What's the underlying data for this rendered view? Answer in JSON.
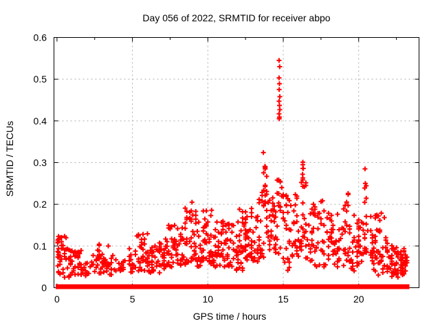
{
  "chart_data": {
    "type": "scatter",
    "title": "Day 056 of 2022, SRMTID for receiver abpo",
    "xlabel": "GPS time / hours",
    "ylabel": "SRMTID / TECUs",
    "xlim": [
      -0.2,
      24.0
    ],
    "ylim": [
      0,
      0.6
    ],
    "xticks": [
      0,
      5,
      10,
      15,
      20
    ],
    "xtick_labels": [
      "0",
      "5",
      "10",
      "15",
      "20"
    ],
    "xticks_minor": [
      2.5,
      7.5,
      12.5,
      17.5,
      22.5
    ],
    "yticks": [
      0,
      0.1,
      0.2,
      0.3,
      0.4,
      0.5,
      0.6
    ],
    "ytick_labels": [
      "0",
      "0.1",
      "0.2",
      "0.3",
      "0.4",
      "0.5",
      "0.6"
    ],
    "grid": true,
    "legend": "none",
    "marker": "plus",
    "marker_color": "#ff0000",
    "grid_color": "#ababab",
    "border_color": "#000000",
    "text_color": "#000000",
    "seed": 56,
    "series_clusters": [
      [
        0.25,
        0.45,
        0.03,
        0.125,
        30
      ],
      [
        0.8,
        0.5,
        0.025,
        0.095,
        26
      ],
      [
        1.45,
        0.45,
        0.03,
        0.09,
        20
      ],
      [
        2.1,
        0.35,
        0.025,
        0.07,
        10
      ],
      [
        2.8,
        0.6,
        0.035,
        0.105,
        30
      ],
      [
        3.6,
        0.5,
        0.03,
        0.085,
        18
      ],
      [
        4.3,
        0.45,
        0.03,
        0.075,
        12
      ],
      [
        5.0,
        0.4,
        0.035,
        0.095,
        16
      ],
      [
        5.65,
        0.5,
        0.04,
        0.13,
        28
      ],
      [
        6.3,
        0.5,
        0.03,
        0.1,
        26
      ],
      [
        7.0,
        0.5,
        0.04,
        0.115,
        26
      ],
      [
        7.65,
        0.5,
        0.05,
        0.15,
        28
      ],
      [
        8.25,
        0.5,
        0.05,
        0.145,
        26
      ],
      [
        8.9,
        0.45,
        0.06,
        0.205,
        30
      ],
      [
        9.5,
        0.5,
        0.05,
        0.165,
        28
      ],
      [
        10.1,
        0.5,
        0.06,
        0.185,
        30
      ],
      [
        10.7,
        0.5,
        0.05,
        0.16,
        28
      ],
      [
        11.3,
        0.5,
        0.05,
        0.155,
        28
      ],
      [
        11.9,
        0.5,
        0.04,
        0.17,
        28
      ],
      [
        12.45,
        0.5,
        0.06,
        0.19,
        30
      ],
      [
        13.0,
        0.45,
        0.06,
        0.185,
        28
      ],
      [
        13.45,
        0.3,
        0.07,
        0.24,
        18
      ],
      [
        13.75,
        0.2,
        0.19,
        0.295,
        18
      ],
      [
        14.15,
        0.35,
        0.09,
        0.235,
        24
      ],
      [
        14.55,
        0.3,
        0.08,
        0.21,
        16
      ],
      [
        14.75,
        0.25,
        0.17,
        0.26,
        12
      ],
      [
        15.3,
        0.5,
        0.04,
        0.23,
        30
      ],
      [
        15.9,
        0.4,
        0.07,
        0.225,
        24
      ],
      [
        16.3,
        0.2,
        0.1,
        0.3,
        16
      ],
      [
        16.8,
        0.5,
        0.06,
        0.215,
        26
      ],
      [
        17.4,
        0.5,
        0.05,
        0.21,
        26
      ],
      [
        18.0,
        0.5,
        0.05,
        0.185,
        24
      ],
      [
        18.6,
        0.5,
        0.05,
        0.18,
        24
      ],
      [
        19.2,
        0.3,
        0.06,
        0.23,
        20
      ],
      [
        19.7,
        0.4,
        0.04,
        0.175,
        22
      ],
      [
        20.1,
        0.3,
        0.05,
        0.16,
        18
      ],
      [
        20.45,
        0.18,
        0.07,
        0.285,
        16
      ],
      [
        20.9,
        0.4,
        0.04,
        0.175,
        22
      ],
      [
        21.4,
        0.4,
        0.03,
        0.18,
        24
      ],
      [
        21.9,
        0.4,
        0.03,
        0.12,
        22
      ],
      [
        22.4,
        0.4,
        0.025,
        0.1,
        26
      ],
      [
        22.85,
        0.35,
        0.03,
        0.1,
        26
      ],
      [
        23.15,
        0.15,
        0.035,
        0.09,
        10
      ]
    ],
    "spike_points": [
      [
        14.72,
        0.545
      ],
      [
        14.76,
        0.53
      ],
      [
        14.72,
        0.503
      ],
      [
        14.75,
        0.489
      ],
      [
        14.73,
        0.475
      ],
      [
        14.77,
        0.458
      ],
      [
        14.72,
        0.447
      ],
      [
        14.75,
        0.437
      ],
      [
        14.77,
        0.427
      ],
      [
        14.72,
        0.417
      ],
      [
        14.75,
        0.409
      ],
      [
        14.73,
        0.405
      ]
    ],
    "notable_points": [
      [
        13.68,
        0.324
      ],
      [
        13.78,
        0.291
      ],
      [
        14.6,
        0.258
      ],
      [
        16.3,
        0.301
      ],
      [
        16.33,
        0.286
      ],
      [
        16.28,
        0.272
      ],
      [
        20.42,
        0.285
      ],
      [
        20.44,
        0.25
      ],
      [
        19.3,
        0.226
      ],
      [
        8.95,
        0.205
      ],
      [
        12.9,
        0.19
      ],
      [
        10.25,
        0.186
      ],
      [
        0.15,
        0.118
      ]
    ],
    "zero_line_segments": [
      [
        0.05,
        0.3
      ],
      [
        0.45,
        0.6
      ],
      [
        0.75,
        1.05
      ],
      [
        1.2,
        1.3
      ],
      [
        1.55,
        1.8
      ],
      [
        1.9,
        2.15
      ],
      [
        2.3,
        2.8
      ],
      [
        2.95,
        3.15
      ],
      [
        3.3,
        3.75
      ],
      [
        3.9,
        4.05
      ],
      [
        4.2,
        4.7
      ],
      [
        4.85,
        5.1
      ],
      [
        5.25,
        5.75
      ],
      [
        5.9,
        6.35
      ],
      [
        6.5,
        6.8
      ],
      [
        6.95,
        7.4
      ],
      [
        7.55,
        7.85
      ],
      [
        8.0,
        8.35
      ],
      [
        8.5,
        8.9
      ],
      [
        9.05,
        9.55
      ],
      [
        9.7,
        9.85
      ],
      [
        10.0,
        10.45
      ],
      [
        10.6,
        10.8
      ],
      [
        11.0,
        11.5
      ],
      [
        11.65,
        12.15
      ],
      [
        12.3,
        12.5
      ],
      [
        12.65,
        13.15
      ],
      [
        13.3,
        13.5
      ],
      [
        13.65,
        14.1
      ],
      [
        14.25,
        14.5
      ],
      [
        14.7,
        14.85
      ],
      [
        15.05,
        15.35
      ],
      [
        15.55,
        15.65
      ],
      [
        15.85,
        16.25
      ],
      [
        16.45,
        16.6
      ],
      [
        16.8,
        17.25
      ],
      [
        17.4,
        17.8
      ],
      [
        17.95,
        18.1
      ],
      [
        18.25,
        18.7
      ],
      [
        18.85,
        19.3
      ],
      [
        19.5,
        19.6
      ],
      [
        19.75,
        20.2
      ],
      [
        20.35,
        20.55
      ],
      [
        20.75,
        21.2
      ],
      [
        21.35,
        21.75
      ],
      [
        21.9,
        22.35
      ],
      [
        22.5,
        22.95
      ],
      [
        23.05,
        23.2
      ]
    ]
  }
}
